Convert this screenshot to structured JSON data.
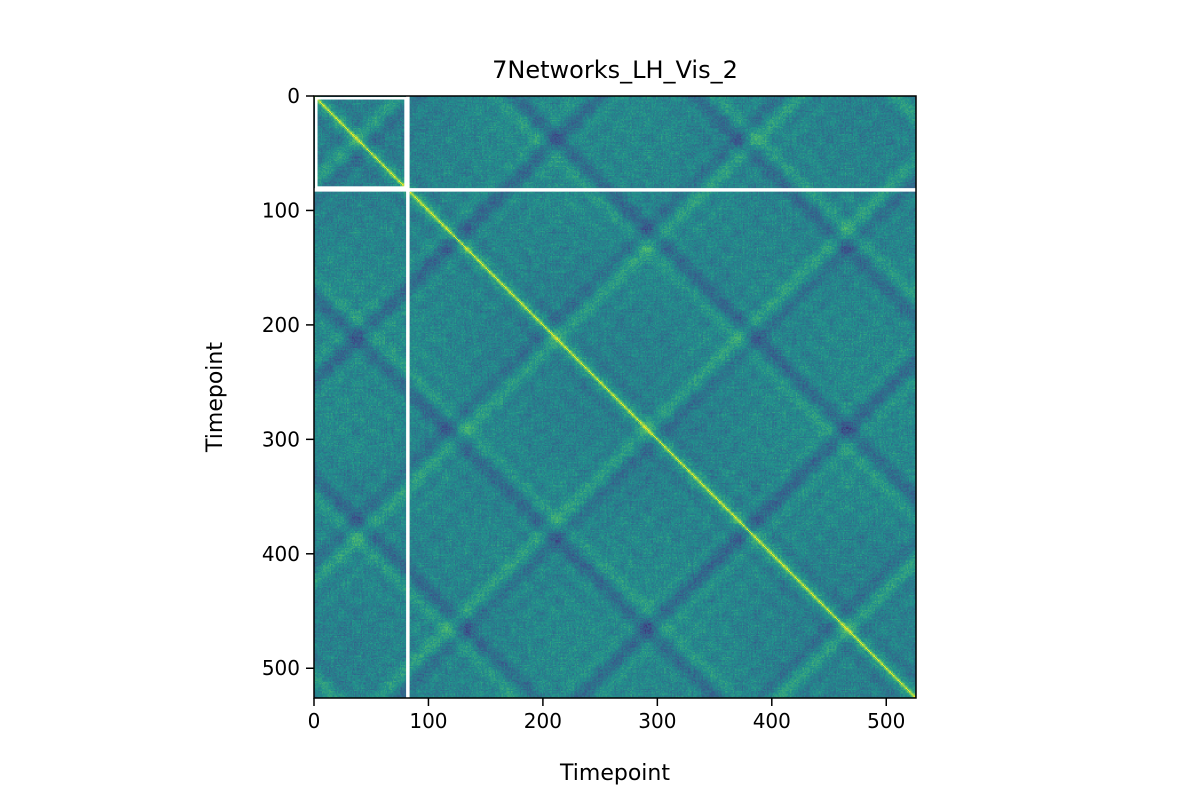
{
  "chart_data": {
    "type": "heatmap",
    "title": "7Networks_LH_Vis_2",
    "xlabel": "Timepoint",
    "ylabel": "Timepoint",
    "n_timepoints": 526,
    "xlim": [
      0,
      526
    ],
    "ylim": [
      526,
      0
    ],
    "x_ticks": [
      0,
      100,
      200,
      300,
      400,
      500
    ],
    "x_tick_labels": [
      "0",
      "100",
      "200",
      "300",
      "400",
      "500"
    ],
    "y_ticks": [
      0,
      100,
      200,
      300,
      400,
      500
    ],
    "y_tick_labels": [
      "0",
      "100",
      "200",
      "300",
      "400",
      "500"
    ],
    "colormap": "viridis",
    "diagonal_value": 1.0,
    "segment_boundary_timepoint": 82,
    "highlight_box": {
      "x0": 2,
      "x1": 80,
      "y0": 2,
      "y1": 80
    },
    "separator_color": "#ffffff",
    "colors": {
      "low": "#440154",
      "mid": "#21918c",
      "high": "#fde725"
    }
  }
}
